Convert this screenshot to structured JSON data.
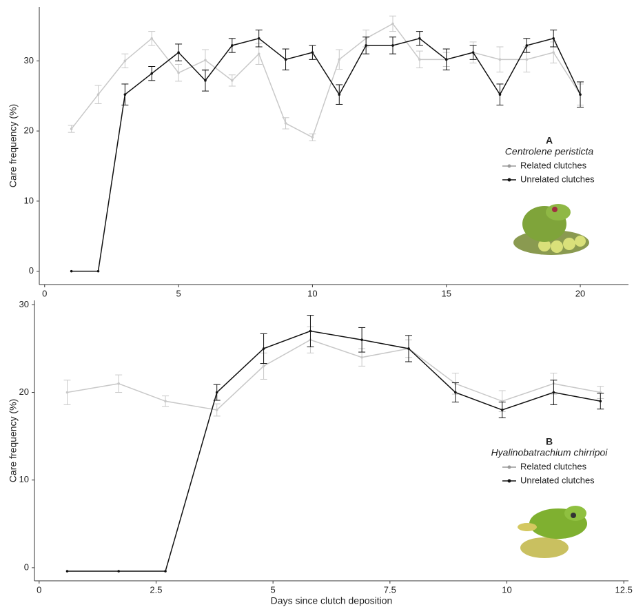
{
  "chart_data": [
    {
      "type": "line",
      "label": "A",
      "subtitle": "Centrolene peristicta",
      "ylabel": "Care frequency (%)",
      "x": [
        1,
        2,
        3,
        4,
        5,
        6,
        7,
        8,
        9,
        10,
        11,
        12,
        13,
        14,
        15,
        16,
        17,
        18,
        19,
        20
      ],
      "xlim": [
        -0.2,
        21.8
      ],
      "ylim": [
        -1.9,
        37.7
      ],
      "xticks": [
        0,
        5,
        10,
        15,
        20
      ],
      "yticks": [
        0,
        10,
        20,
        30
      ],
      "series": [
        {
          "name": "Related clutches",
          "color": "#c8c8c8",
          "values": [
            20.3,
            25.2,
            30.0,
            33.2,
            28.3,
            30.1,
            27.2,
            31.0,
            21.1,
            19.1,
            30.2,
            33.2,
            35.3,
            30.2,
            30.2,
            31.2,
            30.2,
            30.2,
            31.2,
            25.2
          ],
          "errors": [
            0.5,
            1.3,
            1.0,
            1.0,
            1.2,
            1.5,
            0.8,
            1.5,
            0.8,
            0.5,
            1.4,
            1.2,
            1.1,
            1.2,
            1.0,
            1.5,
            1.8,
            1.8,
            1.5,
            1.5
          ]
        },
        {
          "name": "Unrelated clutches",
          "color": "#111111",
          "values": [
            0,
            0,
            25.2,
            28.2,
            31.2,
            27.2,
            32.2,
            33.2,
            30.2,
            31.2,
            25.2,
            32.2,
            32.2,
            33.2,
            30.2,
            31.2,
            25.2,
            32.2,
            33.2,
            25.2
          ],
          "errors": [
            0,
            0,
            1.5,
            1.0,
            1.2,
            1.5,
            1.0,
            1.2,
            1.5,
            1.0,
            1.4,
            1.2,
            1.2,
            1.0,
            1.5,
            1.0,
            1.5,
            1.0,
            1.2,
            1.8
          ]
        }
      ]
    },
    {
      "type": "line",
      "label": "B",
      "subtitle": "Hyalinobatrachium chirripoi",
      "ylabel": "Care frequency (%)",
      "xlabel": "Days since clutch deposition",
      "x": [
        0.6,
        1.7,
        2.7,
        3.8,
        4.8,
        5.8,
        6.9,
        7.9,
        8.9,
        9.9,
        11,
        12
      ],
      "xlim": [
        -0.1,
        12.6
      ],
      "ylim": [
        -1.5,
        30.5
      ],
      "xticks": [
        0,
        2.5,
        5,
        7.5,
        10,
        12.5
      ],
      "yticks": [
        0,
        10,
        20,
        30
      ],
      "series": [
        {
          "name": "Related clutches",
          "color": "#c8c8c8",
          "values": [
            20,
            21,
            19,
            18,
            23,
            26,
            24,
            25,
            21,
            19,
            21,
            20
          ],
          "errors": [
            1.4,
            1.0,
            0.6,
            0.7,
            1.5,
            1.5,
            1.0,
            1.0,
            1.2,
            1.2,
            1.2,
            0.7
          ]
        },
        {
          "name": "Unrelated clutches",
          "color": "#111111",
          "values": [
            -0.4,
            -0.4,
            -0.4,
            20,
            25,
            27,
            26,
            25,
            20,
            18,
            20,
            19
          ],
          "errors": [
            0,
            0,
            0,
            0.9,
            1.7,
            1.8,
            1.4,
            1.5,
            1.1,
            0.9,
            1.4,
            0.9
          ]
        }
      ]
    }
  ]
}
